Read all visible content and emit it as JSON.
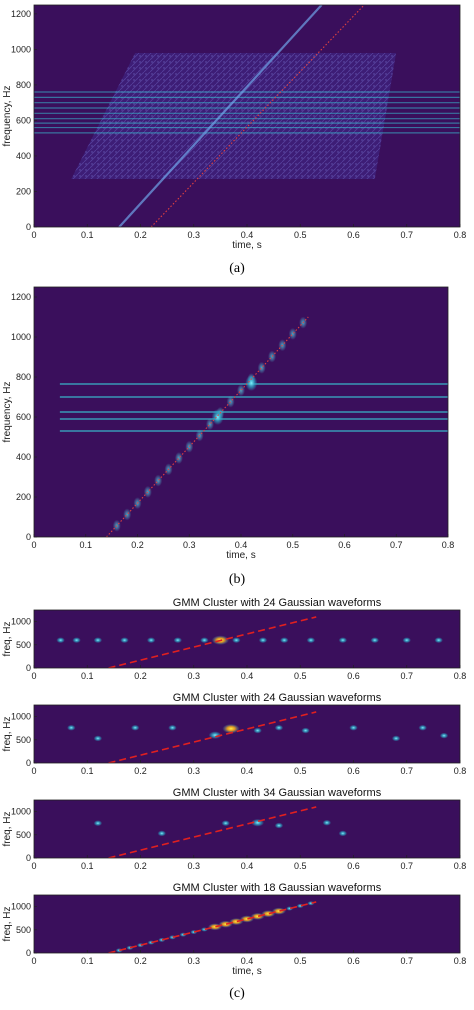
{
  "captions": {
    "a": "(a)",
    "b": "(b)",
    "c": "(c)"
  },
  "colors": {
    "background": "#3a0f5c",
    "harmonic": "#39c6d6",
    "chirp_dotted": "#e04040",
    "chirp_dashed": "#e02020",
    "hot": "#f2e21a"
  },
  "chart_data": [
    {
      "id": "a",
      "type": "heatmap",
      "title": "",
      "xlabel": "time, s",
      "ylabel": "frequency, Hz",
      "xlim": [
        0,
        0.8
      ],
      "ylim": [
        0,
        1250
      ],
      "x_ticks": [
        "0",
        "0.1",
        "0.2",
        "0.3",
        "0.4",
        "0.5",
        "0.6",
        "0.7",
        "0.8"
      ],
      "y_ticks": [
        "0",
        "200",
        "400",
        "600",
        "800",
        "1000",
        "1200"
      ],
      "harmonics_hz": [
        530,
        560,
        585,
        610,
        640,
        670,
        700,
        730,
        760
      ],
      "chirp_line": {
        "t": [
          0.22,
          0.62
        ],
        "f": [
          0,
          1250
        ]
      },
      "chirp_component": {
        "t": [
          0.16,
          0.54
        ],
        "f": [
          0,
          1250
        ]
      },
      "noise_band": {
        "t": [
          0.07,
          0.68
        ],
        "f": [
          270,
          980
        ]
      }
    },
    {
      "id": "b",
      "type": "heatmap",
      "title": "",
      "xlabel": "time, s",
      "ylabel": "frequency, Hz",
      "xlim": [
        0,
        0.8
      ],
      "ylim": [
        0,
        1250
      ],
      "x_ticks": [
        "0",
        "0.1",
        "0.2",
        "0.3",
        "0.4",
        "0.5",
        "0.6",
        "0.7",
        "0.8"
      ],
      "y_ticks": [
        "0",
        "200",
        "400",
        "600",
        "800",
        "1000",
        "1200"
      ],
      "harmonics_hz": [
        530,
        590,
        625,
        700,
        765
      ],
      "chirp_line": {
        "t": [
          0.14,
          0.53
        ],
        "f": [
          0,
          1100
        ]
      },
      "blob_times": [
        0.16,
        0.18,
        0.2,
        0.22,
        0.24,
        0.26,
        0.28,
        0.3,
        0.32,
        0.34,
        0.36,
        0.38,
        0.4,
        0.42,
        0.44,
        0.46,
        0.48,
        0.5,
        0.52
      ],
      "bright_blobs": [
        {
          "t": 0.355,
          "f": 600
        },
        {
          "t": 0.42,
          "f": 770
        }
      ]
    },
    {
      "id": "c1",
      "type": "heatmap",
      "title": "GMM Cluster with 24 Gaussian waveforms",
      "xlabel": "",
      "ylabel": "freq, Hz",
      "xlim": [
        0,
        0.8
      ],
      "ylim": [
        0,
        1250
      ],
      "x_ticks": [
        "0",
        "0.1",
        "0.2",
        "0.3",
        "0.4",
        "0.5",
        "0.6",
        "0.7",
        "0.8"
      ],
      "y_ticks": [
        "0",
        "500",
        "1000"
      ],
      "chirp_line": {
        "t": [
          0.14,
          0.53
        ],
        "f": [
          0,
          1100
        ]
      },
      "blobs": [
        {
          "t": 0.05,
          "f": 600,
          "s": 1
        },
        {
          "t": 0.08,
          "f": 600,
          "s": 1
        },
        {
          "t": 0.12,
          "f": 600,
          "s": 1
        },
        {
          "t": 0.17,
          "f": 600,
          "s": 1
        },
        {
          "t": 0.22,
          "f": 600,
          "s": 1
        },
        {
          "t": 0.27,
          "f": 600,
          "s": 1
        },
        {
          "t": 0.32,
          "f": 600,
          "s": 1
        },
        {
          "t": 0.35,
          "f": 600,
          "s": 3
        },
        {
          "t": 0.38,
          "f": 600,
          "s": 1
        },
        {
          "t": 0.43,
          "f": 600,
          "s": 1
        },
        {
          "t": 0.47,
          "f": 600,
          "s": 1
        },
        {
          "t": 0.52,
          "f": 600,
          "s": 1
        },
        {
          "t": 0.58,
          "f": 600,
          "s": 1
        },
        {
          "t": 0.64,
          "f": 600,
          "s": 1
        },
        {
          "t": 0.7,
          "f": 600,
          "s": 1
        },
        {
          "t": 0.76,
          "f": 600,
          "s": 1
        }
      ]
    },
    {
      "id": "c2",
      "type": "heatmap",
      "title": "GMM Cluster with 24 Gaussian waveforms",
      "xlabel": "",
      "ylabel": "freq, Hz",
      "xlim": [
        0,
        0.8
      ],
      "ylim": [
        0,
        1250
      ],
      "x_ticks": [
        "0",
        "0.1",
        "0.2",
        "0.3",
        "0.4",
        "0.5",
        "0.6",
        "0.7",
        "0.8"
      ],
      "y_ticks": [
        "0",
        "500",
        "1000"
      ],
      "chirp_line": {
        "t": [
          0.14,
          0.53
        ],
        "f": [
          0,
          1100
        ]
      },
      "blobs": [
        {
          "t": 0.07,
          "f": 760,
          "s": 1
        },
        {
          "t": 0.12,
          "f": 530,
          "s": 1
        },
        {
          "t": 0.19,
          "f": 760,
          "s": 1
        },
        {
          "t": 0.26,
          "f": 760,
          "s": 1
        },
        {
          "t": 0.34,
          "f": 600,
          "s": 2
        },
        {
          "t": 0.37,
          "f": 740,
          "s": 3
        },
        {
          "t": 0.42,
          "f": 700,
          "s": 1
        },
        {
          "t": 0.46,
          "f": 760,
          "s": 1
        },
        {
          "t": 0.51,
          "f": 700,
          "s": 1
        },
        {
          "t": 0.6,
          "f": 760,
          "s": 1
        },
        {
          "t": 0.68,
          "f": 530,
          "s": 1
        },
        {
          "t": 0.73,
          "f": 760,
          "s": 1
        },
        {
          "t": 0.77,
          "f": 590,
          "s": 1
        }
      ]
    },
    {
      "id": "c3",
      "type": "heatmap",
      "title": "GMM Cluster with 34 Gaussian waveforms",
      "xlabel": "",
      "ylabel": "freq, Hz",
      "xlim": [
        0,
        0.8
      ],
      "ylim": [
        0,
        1250
      ],
      "x_ticks": [
        "0",
        "0.1",
        "0.2",
        "0.3",
        "0.4",
        "0.5",
        "0.6",
        "0.7",
        "0.8"
      ],
      "y_ticks": [
        "0",
        "500",
        "1000"
      ],
      "chirp_line": {
        "t": [
          0.14,
          0.53
        ],
        "f": [
          0,
          1100
        ]
      },
      "blobs": [
        {
          "t": 0.12,
          "f": 750,
          "s": 1
        },
        {
          "t": 0.24,
          "f": 530,
          "s": 1
        },
        {
          "t": 0.36,
          "f": 750,
          "s": 1
        },
        {
          "t": 0.42,
          "f": 760,
          "s": 2
        },
        {
          "t": 0.46,
          "f": 700,
          "s": 1
        },
        {
          "t": 0.55,
          "f": 760,
          "s": 1
        },
        {
          "t": 0.58,
          "f": 530,
          "s": 1
        }
      ]
    },
    {
      "id": "c4",
      "type": "heatmap",
      "title": "GMM Cluster with 18 Gaussian waveforms",
      "xlabel": "time, s",
      "ylabel": "freq, Hz",
      "xlim": [
        0,
        0.8
      ],
      "ylim": [
        0,
        1250
      ],
      "x_ticks": [
        "0",
        "0.1",
        "0.2",
        "0.3",
        "0.4",
        "0.5",
        "0.6",
        "0.7",
        "0.8"
      ],
      "y_ticks": [
        "0",
        "500",
        "1000"
      ],
      "chirp_line": {
        "t": [
          0.14,
          0.53
        ],
        "f": [
          0,
          1100
        ]
      },
      "chirp_blobs": true
    }
  ]
}
